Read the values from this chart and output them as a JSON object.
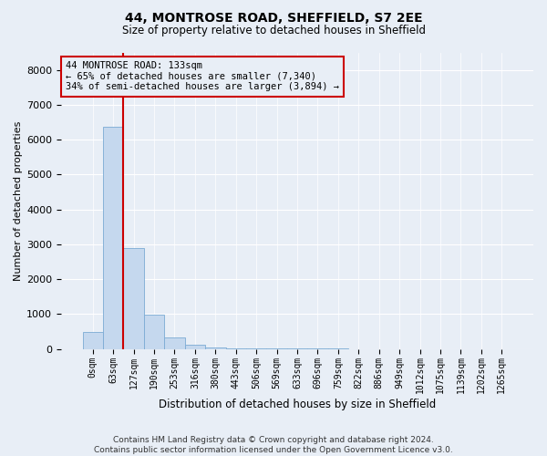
{
  "title": "44, MONTROSE ROAD, SHEFFIELD, S7 2EE",
  "subtitle": "Size of property relative to detached houses in Sheffield",
  "xlabel": "Distribution of detached houses by size in Sheffield",
  "ylabel": "Number of detached properties",
  "bar_color": "#c5d8ee",
  "bar_edge_color": "#7baad4",
  "annotation_line_color": "#cc0000",
  "annotation_text_line1": "44 MONTROSE ROAD: 133sqm",
  "annotation_text_line2": "← 65% of detached houses are smaller (7,340)",
  "annotation_text_line3": "34% of semi-detached houses are larger (3,894) →",
  "footer_line1": "Contains HM Land Registry data © Crown copyright and database right 2024.",
  "footer_line2": "Contains public sector information licensed under the Open Government Licence v3.0.",
  "categories": [
    "0sqm",
    "63sqm",
    "127sqm",
    "190sqm",
    "253sqm",
    "316sqm",
    "380sqm",
    "443sqm",
    "506sqm",
    "569sqm",
    "633sqm",
    "696sqm",
    "759sqm",
    "822sqm",
    "886sqm",
    "949sqm",
    "1012sqm",
    "1075sqm",
    "1139sqm",
    "1202sqm",
    "1265sqm"
  ],
  "values": [
    490,
    6380,
    2900,
    980,
    340,
    130,
    55,
    25,
    15,
    10,
    8,
    6,
    5,
    4,
    3,
    2,
    2,
    1,
    1,
    1,
    0
  ],
  "ylim": [
    0,
    8500
  ],
  "yticks": [
    0,
    1000,
    2000,
    3000,
    4000,
    5000,
    6000,
    7000,
    8000
  ],
  "property_line_x": 1.5,
  "background_color": "#e8eef6",
  "grid_color": "#ffffff"
}
